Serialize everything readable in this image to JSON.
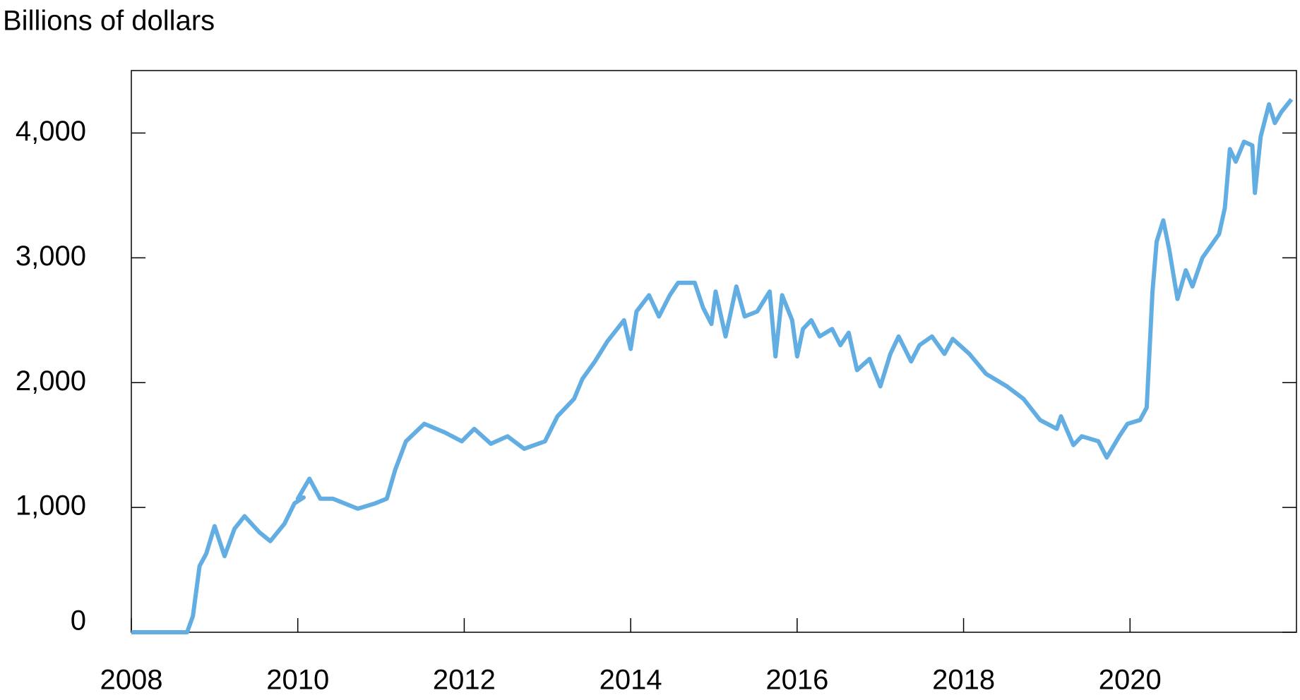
{
  "chart_data": {
    "type": "line",
    "ylabel": "Billions of dollars",
    "xlim": [
      2008,
      2022
    ],
    "xticks": [
      2008,
      2010,
      2012,
      2014,
      2016,
      2018,
      2020
    ],
    "ylim": [
      0,
      4500
    ],
    "yticks": [
      0,
      {
        "value": 1000,
        "label": "1,000"
      },
      {
        "value": 2000,
        "label": "2,000"
      },
      {
        "value": 3000,
        "label": "3,000"
      },
      {
        "value": 4000,
        "label": "4,000"
      }
    ],
    "grid": false,
    "x": [
      2008.0,
      2008.67,
      2008.74,
      2008.82,
      2008.9,
      2009.0,
      2009.12,
      2009.24,
      2009.36,
      2009.54,
      2009.67,
      2009.84,
      2009.96,
      2010.07,
      2010.0,
      2010.14,
      2010.27,
      2010.42,
      2010.72,
      2010.92,
      2011.07,
      2011.17,
      2011.3,
      2011.52,
      2011.77,
      2011.97,
      2012.12,
      2012.32,
      2012.52,
      2012.72,
      2012.97,
      2013.12,
      2013.32,
      2013.42,
      2013.57,
      2013.72,
      2013.92,
      2014.0,
      2014.07,
      2014.22,
      2014.34,
      2014.47,
      2014.57,
      2014.77,
      2014.87,
      2014.97,
      2015.02,
      2015.14,
      2015.27,
      2015.37,
      2015.52,
      2015.67,
      2015.74,
      2015.82,
      2015.94,
      2016.0,
      2016.07,
      2016.17,
      2016.27,
      2016.42,
      2016.52,
      2016.62,
      2016.72,
      2016.87,
      2017.0,
      2017.12,
      2017.22,
      2017.37,
      2017.47,
      2017.62,
      2017.77,
      2017.87,
      2018.07,
      2018.27,
      2018.52,
      2018.72,
      2018.92,
      2019.12,
      2019.17,
      2019.32,
      2019.42,
      2019.62,
      2019.72,
      2019.87,
      2019.97,
      2020.12,
      2020.2,
      2020.27,
      2020.32,
      2020.4,
      2020.47,
      2020.57,
      2020.67,
      2020.75,
      2020.87,
      2021.07,
      2021.14,
      2021.2,
      2021.27,
      2021.37,
      2021.47,
      2021.5,
      2021.57,
      2021.67,
      2021.74,
      2021.82,
      2021.94
    ],
    "series": [
      {
        "name": "Billions of dollars",
        "color": "#62aee3",
        "values": [
          0,
          0,
          130,
          530,
          630,
          850,
          610,
          830,
          930,
          800,
          730,
          870,
          1033,
          1080,
          1070,
          1230,
          1070,
          1070,
          990,
          1030,
          1070,
          1300,
          1530,
          1670,
          1600,
          1530,
          1630,
          1510,
          1570,
          1470,
          1530,
          1730,
          1870,
          2030,
          2170,
          2330,
          2500,
          2270,
          2570,
          2700,
          2530,
          2700,
          2800,
          2800,
          2600,
          2470,
          2730,
          2370,
          2770,
          2530,
          2570,
          2730,
          2210,
          2700,
          2500,
          2210,
          2430,
          2500,
          2370,
          2430,
          2300,
          2400,
          2100,
          2190,
          1970,
          2230,
          2370,
          2170,
          2300,
          2370,
          2230,
          2350,
          2230,
          2070,
          1970,
          1870,
          1700,
          1630,
          1730,
          1500,
          1570,
          1530,
          1400,
          1570,
          1670,
          1700,
          1800,
          2730,
          3130,
          3300,
          3070,
          2670,
          2900,
          2770,
          3000,
          3190,
          3400,
          3870,
          3770,
          3930,
          3900,
          3520,
          3970,
          4230,
          4080,
          4170,
          4270
        ]
      }
    ]
  }
}
